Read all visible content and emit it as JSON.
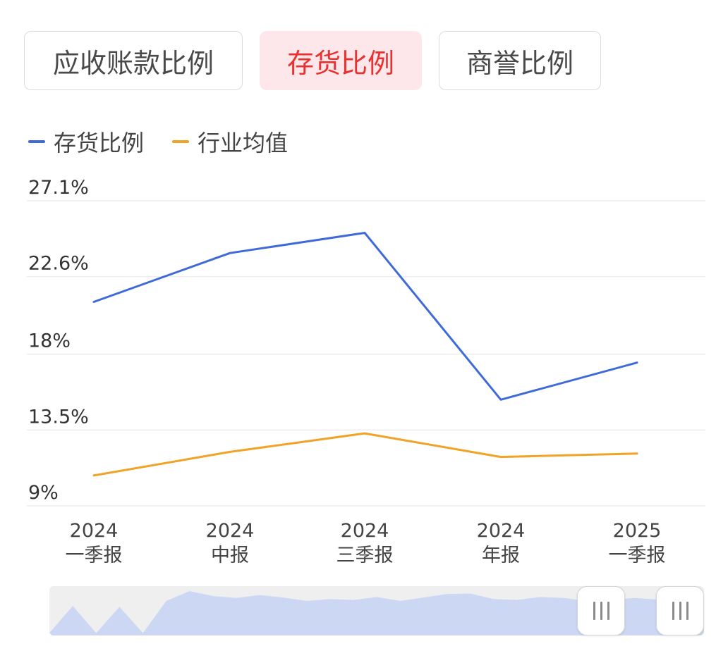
{
  "tabs": [
    {
      "label": "应收账款比例",
      "active": false
    },
    {
      "label": "存货比例",
      "active": true
    },
    {
      "label": "商誉比例",
      "active": false
    }
  ],
  "colors": {
    "series_main": "#3f6bd8",
    "series_avg": "#f0a326",
    "active_tab_bg": "#fde7ea",
    "active_tab_text": "#e8322f",
    "slider_fill": "#ccd8f3"
  },
  "legend": [
    {
      "label": "存货比例",
      "color": "#3f6bd8"
    },
    {
      "label": "行业均值",
      "color": "#f0a326"
    }
  ],
  "chart_data": {
    "type": "line",
    "categories": [
      {
        "year": "2024",
        "period": "一季报"
      },
      {
        "year": "2024",
        "period": "中报"
      },
      {
        "year": "2024",
        "period": "三季报"
      },
      {
        "year": "2024",
        "period": "年报"
      },
      {
        "year": "2025",
        "period": "一季报"
      }
    ],
    "series": [
      {
        "name": "存货比例",
        "values": [
          21.1,
          24.0,
          25.2,
          15.3,
          17.5
        ]
      },
      {
        "name": "行业均值",
        "values": [
          10.8,
          12.2,
          13.3,
          11.9,
          12.1
        ]
      }
    ],
    "yticks": [
      "27.1%",
      "22.6%",
      "18%",
      "13.5%",
      "9%"
    ],
    "ytick_values": [
      27.1,
      22.6,
      18,
      13.5,
      9
    ],
    "ylim": [
      9,
      27.1
    ],
    "grid": true,
    "legend_position": "top-left"
  },
  "slider": {
    "overview_values": [
      5,
      60,
      5,
      58,
      5,
      70,
      90,
      80,
      76,
      82,
      77,
      70,
      74,
      72,
      78,
      70,
      77,
      84,
      85,
      74,
      72,
      78,
      76,
      70,
      72,
      76,
      73,
      60,
      48
    ]
  }
}
